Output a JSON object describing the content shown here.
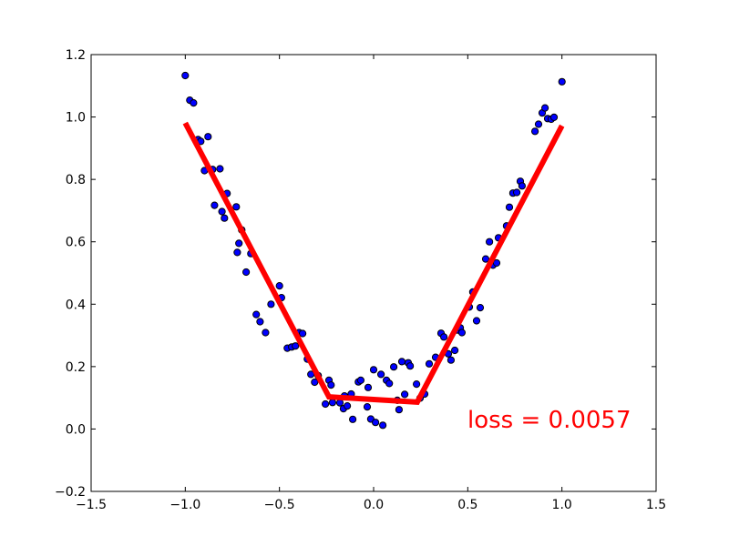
{
  "chart_data": {
    "type": "scatter",
    "title": "",
    "xlabel": "",
    "ylabel": "",
    "xlim": [
      -1.5,
      1.5
    ],
    "ylim": [
      -0.2,
      1.2
    ],
    "grid": false,
    "legend": null,
    "xticks": [
      -1.5,
      -1.0,
      -0.5,
      0.0,
      0.5,
      1.0,
      1.5
    ],
    "xtick_labels": [
      "−1.5",
      "−1.0",
      "−0.5",
      "0.0",
      "0.5",
      "1.0",
      "1.5"
    ],
    "yticks": [
      -0.2,
      0.0,
      0.2,
      0.4,
      0.6,
      0.8,
      1.0,
      1.2
    ],
    "ytick_labels": [
      "−0.2",
      "0.0",
      "0.2",
      "0.4",
      "0.6",
      "0.8",
      "1.0",
      "1.2"
    ],
    "series": [
      {
        "name": "data",
        "kind": "scatter",
        "color": "#0000ff",
        "edgecolor": "#000000",
        "points": [
          [
            -1.0,
            1.133
          ],
          [
            -0.976,
            1.054
          ],
          [
            -0.956,
            1.045
          ],
          [
            -0.932,
            0.928
          ],
          [
            -0.918,
            0.922
          ],
          [
            -0.898,
            0.828
          ],
          [
            -0.879,
            0.937
          ],
          [
            -0.855,
            0.832
          ],
          [
            -0.816,
            0.834
          ],
          [
            -0.845,
            0.717
          ],
          [
            -0.805,
            0.697
          ],
          [
            -0.778,
            0.755
          ],
          [
            -0.792,
            0.676
          ],
          [
            -0.729,
            0.712
          ],
          [
            -0.724,
            0.566
          ],
          [
            -0.7,
            0.638
          ],
          [
            -0.715,
            0.595
          ],
          [
            -0.677,
            0.503
          ],
          [
            -0.652,
            0.562
          ],
          [
            -0.623,
            0.367
          ],
          [
            -0.603,
            0.344
          ],
          [
            -0.574,
            0.309
          ],
          [
            -0.545,
            0.4
          ],
          [
            -0.5,
            0.459
          ],
          [
            -0.489,
            0.421
          ],
          [
            -0.458,
            0.259
          ],
          [
            -0.435,
            0.263
          ],
          [
            -0.415,
            0.266
          ],
          [
            -0.396,
            0.309
          ],
          [
            -0.377,
            0.306
          ],
          [
            -0.333,
            0.175
          ],
          [
            -0.352,
            0.224
          ],
          [
            -0.313,
            0.15
          ],
          [
            -0.294,
            0.171
          ],
          [
            -0.256,
            0.08
          ],
          [
            -0.237,
            0.156
          ],
          [
            -0.226,
            0.141
          ],
          [
            -0.218,
            0.085
          ],
          [
            -0.179,
            0.084
          ],
          [
            -0.16,
            0.065
          ],
          [
            -0.155,
            0.106
          ],
          [
            -0.14,
            0.074
          ],
          [
            -0.119,
            0.112
          ],
          [
            -0.111,
            0.031
          ],
          [
            -0.081,
            0.151
          ],
          [
            -0.068,
            0.156
          ],
          [
            -0.034,
            0.071
          ],
          [
            -0.029,
            0.133
          ],
          [
            -0.015,
            0.032
          ],
          [
            0.0,
            0.19
          ],
          [
            0.01,
            0.021
          ],
          [
            0.039,
            0.175
          ],
          [
            0.049,
            0.012
          ],
          [
            0.068,
            0.156
          ],
          [
            0.083,
            0.146
          ],
          [
            0.107,
            0.199
          ],
          [
            0.126,
            0.092
          ],
          [
            0.135,
            0.062
          ],
          [
            0.15,
            0.216
          ],
          [
            0.165,
            0.111
          ],
          [
            0.184,
            0.212
          ],
          [
            0.194,
            0.202
          ],
          [
            0.228,
            0.144
          ],
          [
            0.247,
            0.099
          ],
          [
            0.271,
            0.112
          ],
          [
            0.295,
            0.209
          ],
          [
            0.329,
            0.23
          ],
          [
            0.358,
            0.307
          ],
          [
            0.373,
            0.295
          ],
          [
            0.397,
            0.241
          ],
          [
            0.411,
            0.221
          ],
          [
            0.431,
            0.252
          ],
          [
            0.445,
            0.317
          ],
          [
            0.46,
            0.324
          ],
          [
            0.469,
            0.309
          ],
          [
            0.508,
            0.391
          ],
          [
            0.527,
            0.439
          ],
          [
            0.547,
            0.347
          ],
          [
            0.566,
            0.389
          ],
          [
            0.595,
            0.545
          ],
          [
            0.615,
            0.6
          ],
          [
            0.634,
            0.525
          ],
          [
            0.653,
            0.532
          ],
          [
            0.663,
            0.613
          ],
          [
            0.706,
            0.651
          ],
          [
            0.721,
            0.711
          ],
          [
            0.74,
            0.756
          ],
          [
            0.76,
            0.758
          ],
          [
            0.779,
            0.794
          ],
          [
            0.788,
            0.779
          ],
          [
            0.857,
            0.954
          ],
          [
            0.876,
            0.977
          ],
          [
            0.895,
            1.013
          ],
          [
            0.91,
            1.029
          ],
          [
            0.924,
            0.995
          ],
          [
            0.943,
            0.993
          ],
          [
            0.958,
            0.999
          ],
          [
            1.0,
            1.113
          ]
        ]
      },
      {
        "name": "fit",
        "kind": "line",
        "color": "#ff0000",
        "linewidth": 6,
        "points": [
          [
            -1.0,
            0.981
          ],
          [
            -0.237,
            0.103
          ],
          [
            0.232,
            0.086
          ],
          [
            1.0,
            0.972
          ]
        ]
      }
    ],
    "annotations": [
      {
        "text": "loss = 0.0057",
        "x": 0.5,
        "y": 0.0,
        "color": "#ff0000",
        "fontsize": 20
      }
    ]
  },
  "annotation": {
    "loss_text": "loss = 0.0057"
  }
}
